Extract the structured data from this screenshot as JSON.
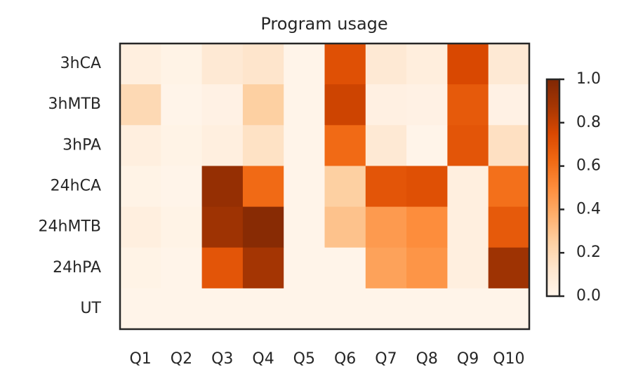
{
  "chart_data": {
    "type": "heatmap",
    "title": "Program usage",
    "x": [
      "Q1",
      "Q2",
      "Q3",
      "Q4",
      "Q5",
      "Q6",
      "Q7",
      "Q8",
      "Q9",
      "Q10"
    ],
    "y": [
      "3hCA",
      "3hMTB",
      "3hPA",
      "24hCA",
      "24hMTB",
      "24hPA",
      "UT"
    ],
    "values": [
      [
        0.05,
        0.02,
        0.1,
        0.13,
        0.01,
        0.72,
        0.1,
        0.06,
        0.75,
        0.1
      ],
      [
        0.2,
        0.01,
        0.03,
        0.25,
        0.01,
        0.78,
        0.04,
        0.03,
        0.68,
        0.03
      ],
      [
        0.05,
        0.02,
        0.05,
        0.15,
        0.01,
        0.62,
        0.1,
        0.01,
        0.7,
        0.16
      ],
      [
        0.02,
        0.01,
        0.93,
        0.62,
        0.01,
        0.25,
        0.7,
        0.72,
        0.05,
        0.6
      ],
      [
        0.05,
        0.02,
        0.9,
        0.97,
        0.01,
        0.3,
        0.45,
        0.5,
        0.05,
        0.68
      ],
      [
        0.02,
        0.01,
        0.7,
        0.88,
        0.01,
        0.01,
        0.42,
        0.47,
        0.05,
        0.9
      ],
      [
        0.01,
        0.01,
        0.01,
        0.01,
        0.01,
        0.01,
        0.01,
        0.01,
        0.01,
        0.01
      ]
    ],
    "colors": [
      "#fff5eb",
      "#fee6ce",
      "#fdd0a2",
      "#fdae6b",
      "#fd8d3c",
      "#f16913",
      "#d94801",
      "#a63603",
      "#7f2704"
    ],
    "zlim": [
      0,
      1
    ],
    "zticks": [
      {
        "value": 0,
        "label": "0.0"
      },
      {
        "value": 0.2,
        "label": "0.2"
      },
      {
        "value": 0.4,
        "label": "0.4"
      },
      {
        "value": 0.6,
        "label": "0.6"
      },
      {
        "value": 0.8,
        "label": "0.8"
      },
      {
        "value": 1,
        "label": "1.0"
      }
    ]
  }
}
